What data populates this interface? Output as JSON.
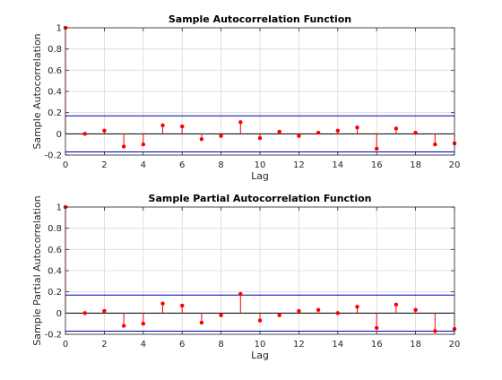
{
  "chart_data": [
    {
      "type": "stem",
      "title": "Sample Autocorrelation Function",
      "xlabel": "Lag",
      "ylabel": "Sample Autocorrelation",
      "xlim": [
        0,
        20
      ],
      "ylim": [
        -0.2,
        1
      ],
      "xticks": [
        0,
        2,
        4,
        6,
        8,
        10,
        12,
        14,
        16,
        18,
        20
      ],
      "yticks": [
        -0.2,
        0,
        0.2,
        0.4,
        0.6,
        0.8,
        1
      ],
      "ytick_labels": [
        "-0.2",
        "0",
        "0.2",
        "0.4",
        "0.6",
        "0.8",
        "1"
      ],
      "grid": true,
      "x": [
        0,
        1,
        2,
        3,
        4,
        5,
        6,
        7,
        8,
        9,
        10,
        11,
        12,
        13,
        14,
        15,
        16,
        17,
        18,
        19,
        20
      ],
      "values": [
        1,
        0.0,
        0.03,
        -0.12,
        -0.1,
        0.08,
        0.07,
        -0.05,
        -0.02,
        0.11,
        -0.04,
        0.02,
        -0.02,
        0.01,
        0.03,
        0.06,
        -0.14,
        0.05,
        0.01,
        -0.1,
        -0.09
      ],
      "confidence_bounds": [
        0.17,
        -0.17
      ],
      "colors": {
        "stem": "#ff0000",
        "bounds": "#0000b8",
        "zero_line": "#000000",
        "grid": "#d9d9d9"
      }
    },
    {
      "type": "stem",
      "title": "Sample Partial Autocorrelation Function",
      "xlabel": "Lag",
      "ylabel": "Sample Partial Autocorrelation",
      "xlim": [
        0,
        20
      ],
      "ylim": [
        -0.2,
        1
      ],
      "xticks": [
        0,
        2,
        4,
        6,
        8,
        10,
        12,
        14,
        16,
        18,
        20
      ],
      "yticks": [
        -0.2,
        0,
        0.2,
        0.4,
        0.6,
        0.8,
        1
      ],
      "ytick_labels": [
        "-0.2",
        "0",
        "0.2",
        "0.4",
        "0.6",
        "0.8",
        "1"
      ],
      "grid": true,
      "x": [
        0,
        1,
        2,
        3,
        4,
        5,
        6,
        7,
        8,
        9,
        10,
        11,
        12,
        13,
        14,
        15,
        16,
        17,
        18,
        19,
        20
      ],
      "values": [
        1,
        0.0,
        0.02,
        -0.12,
        -0.1,
        0.09,
        0.07,
        -0.09,
        -0.02,
        0.18,
        -0.07,
        -0.02,
        0.02,
        0.03,
        0.0,
        0.06,
        -0.14,
        0.08,
        0.03,
        -0.17,
        -0.15
      ],
      "confidence_bounds": [
        0.17,
        -0.17
      ],
      "colors": {
        "stem": "#ff0000",
        "bounds": "#0000b8",
        "zero_line": "#000000",
        "grid": "#d9d9d9"
      }
    }
  ]
}
